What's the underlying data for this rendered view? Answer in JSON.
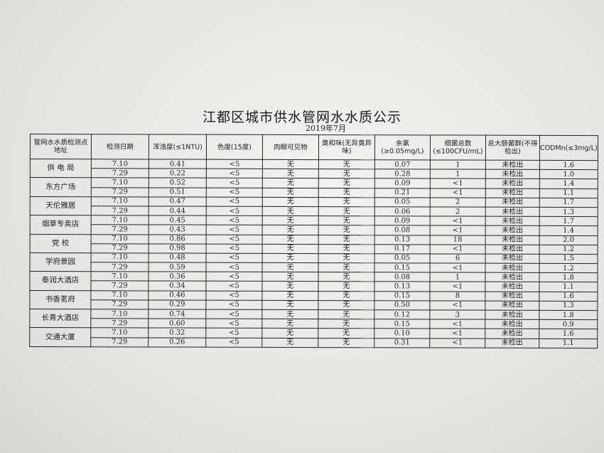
{
  "title": "江都区城市供水管网水水质公示",
  "subtitle": "2019年7月",
  "columns": [
    "管网水水质检测点地址",
    "检测日期",
    "浑浊度(≤1NTU)",
    "色度(15度)",
    "肉眼可见物",
    "臭和味(无异臭异味)",
    "余氯(≥0.05mg/L)",
    "细菌总数(≤100CFU/mL)",
    "总大肠菌群(不得检出)",
    "CODMn(≤3mg/L)"
  ],
  "sites": [
    {
      "name": "供 电 局",
      "rows": [
        [
          "7.10",
          "0.41",
          "<5",
          "无",
          "无",
          "0.07",
          "1",
          "未检出",
          "1.6"
        ],
        [
          "7.29",
          "0.22",
          "<5",
          "无",
          "无",
          "0.28",
          "1",
          "未检出",
          "1.0"
        ]
      ]
    },
    {
      "name": "东方广场",
      "rows": [
        [
          "7.10",
          "0.52",
          "<5",
          "无",
          "无",
          "0.09",
          "<1",
          "未检出",
          "1.4"
        ],
        [
          "7.29",
          "0.51",
          "<5",
          "无",
          "无",
          "0.21",
          "<1",
          "未检出",
          "1.1"
        ]
      ]
    },
    {
      "name": "天伦雅居",
      "rows": [
        [
          "7.10",
          "0.47",
          "<5",
          "无",
          "无",
          "0.05",
          "2",
          "未检出",
          "1.7"
        ],
        [
          "7.29",
          "0.44",
          "<5",
          "无",
          "无",
          "0.06",
          "2",
          "未检出",
          "1.3"
        ]
      ]
    },
    {
      "name": "烟草专卖店",
      "rows": [
        [
          "7.10",
          "0.45",
          "<5",
          "无",
          "无",
          "0.09",
          "<1",
          "未检出",
          "1.7"
        ],
        [
          "7.29",
          "0.43",
          "<5",
          "无",
          "无",
          "0.08",
          "<1",
          "未检出",
          "1.4"
        ]
      ]
    },
    {
      "name": "党  校",
      "rows": [
        [
          "7.10",
          "0.86",
          "<5",
          "无",
          "无",
          "0.13",
          "18",
          "未检出",
          "2.0"
        ],
        [
          "7.29",
          "0.98",
          "<5",
          "无",
          "无",
          "0.17",
          "<1",
          "未检出",
          "1.2"
        ]
      ]
    },
    {
      "name": "学府景园",
      "rows": [
        [
          "7.10",
          "0.48",
          "<5",
          "无",
          "无",
          "0.05",
          "6",
          "未检出",
          "1.5"
        ],
        [
          "7.29",
          "0.59",
          "<5",
          "无",
          "无",
          "0.15",
          "<1",
          "未检出",
          "1.2"
        ]
      ]
    },
    {
      "name": "泰润大酒店",
      "rows": [
        [
          "7.10",
          "0.36",
          "<5",
          "无",
          "无",
          "0.08",
          "1",
          "未检出",
          "1.8"
        ],
        [
          "7.29",
          "0.34",
          "<5",
          "无",
          "无",
          "0.13",
          "<1",
          "未检出",
          "1.1"
        ]
      ]
    },
    {
      "name": "书香茗府",
      "rows": [
        [
          "7.10",
          "0.46",
          "<5",
          "无",
          "无",
          "0.15",
          "8",
          "未检出",
          "1.6"
        ],
        [
          "7.29",
          "0.29",
          "<5",
          "无",
          "无",
          "0.50",
          "<1",
          "未检出",
          "1.3"
        ]
      ]
    },
    {
      "name": "长青大酒店",
      "rows": [
        [
          "7.10",
          "0.74",
          "<5",
          "无",
          "无",
          "0.12",
          "3",
          "未检出",
          "1.8"
        ],
        [
          "7.29",
          "0.60",
          "<5",
          "无",
          "无",
          "0.15",
          "<1",
          "未检出",
          "0.9"
        ]
      ]
    },
    {
      "name": "交通大厦",
      "rows": [
        [
          "7.10",
          "0.32",
          "<5",
          "无",
          "无",
          "0.10",
          "<1",
          "未检出",
          "1.6"
        ],
        [
          "7.29",
          "0.26",
          "<5",
          "无",
          "无",
          "0.31",
          "<1",
          "未检出",
          "1.1"
        ]
      ]
    }
  ]
}
